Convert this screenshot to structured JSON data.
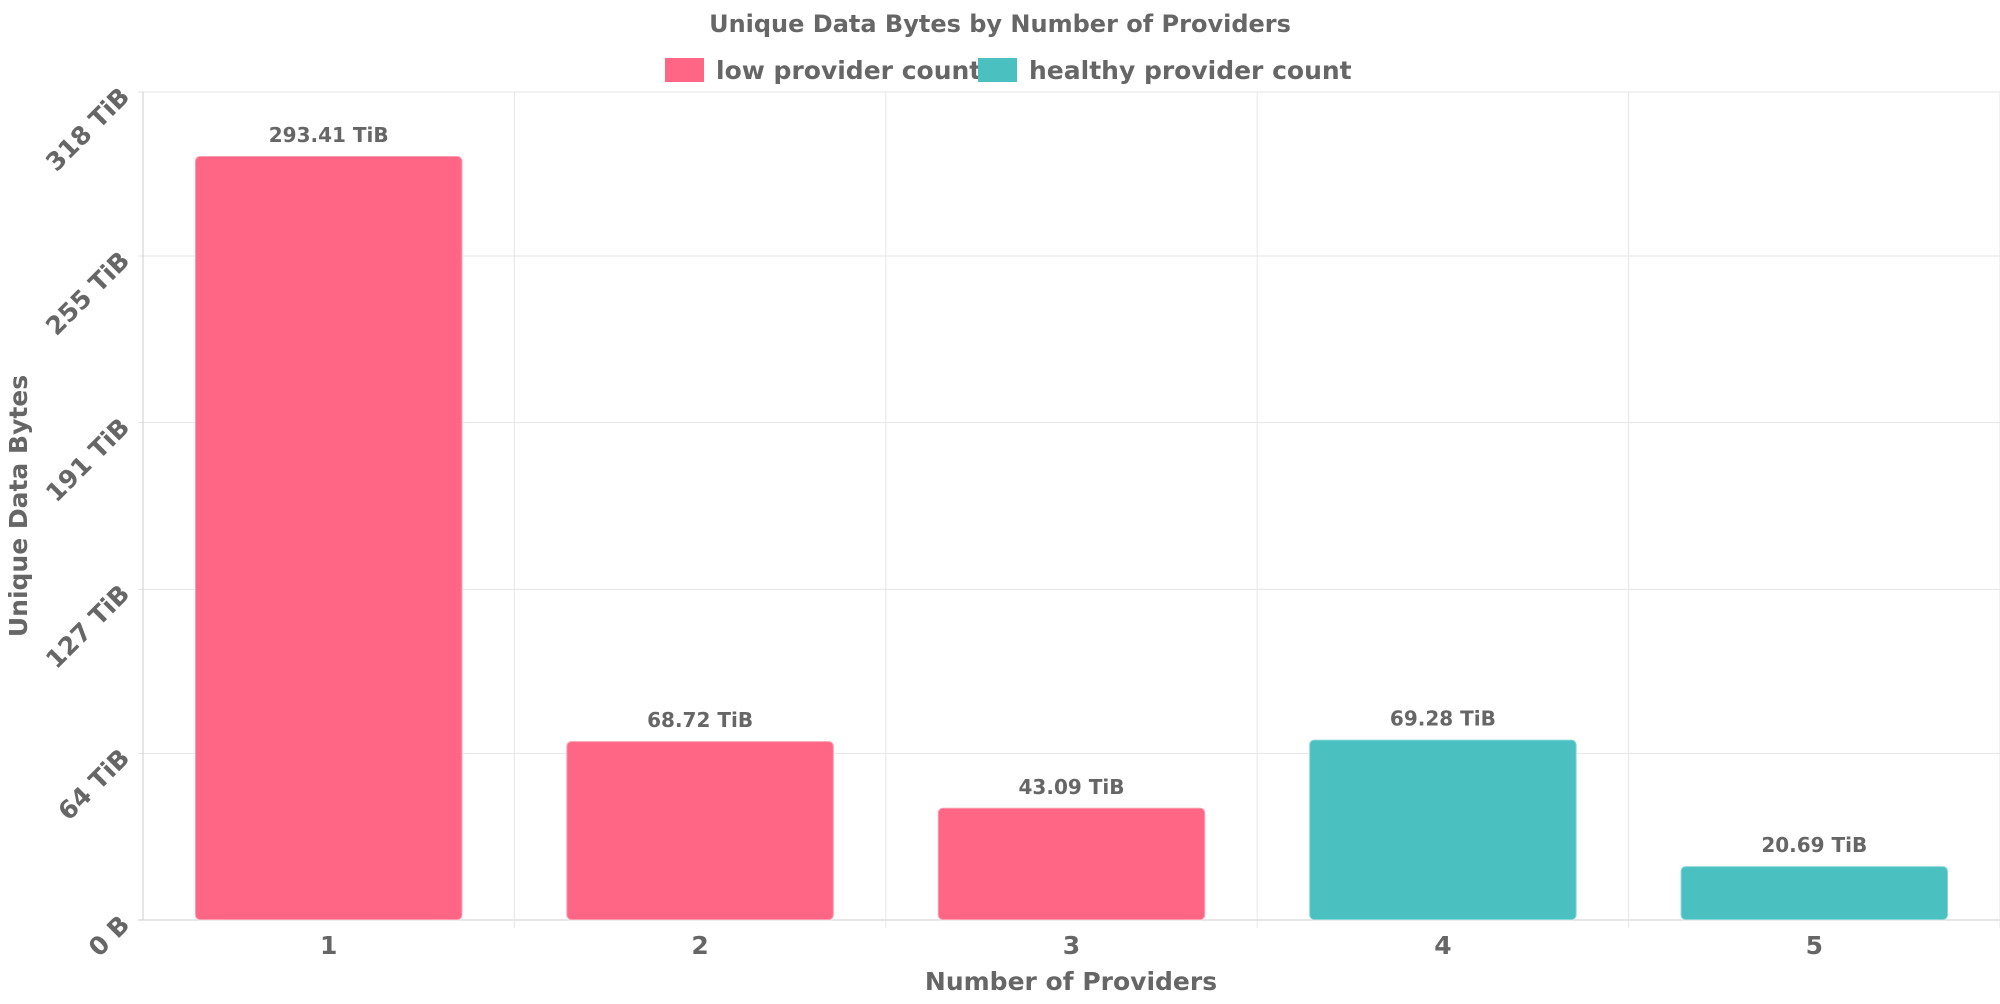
{
  "chart_data": {
    "type": "bar",
    "title": "Unique Data Bytes by Number of Providers",
    "xlabel": "Number of Providers",
    "ylabel": "Unique Data Bytes",
    "categories": [
      "1",
      "2",
      "3",
      "4",
      "5"
    ],
    "values": [
      293.41,
      68.72,
      43.09,
      69.28,
      20.69
    ],
    "value_unit": "TiB",
    "data_labels": [
      "293.41 TiB",
      "68.72 TiB",
      "43.09 TiB",
      "69.28 TiB",
      "20.69 TiB"
    ],
    "bar_groups": [
      "low",
      "low",
      "low",
      "healthy",
      "healthy"
    ],
    "ylim": [
      0,
      318
    ],
    "yticks": [
      0,
      64,
      127,
      191,
      255,
      318
    ],
    "ytick_labels": [
      "0 B",
      "64 TiB",
      "127 TiB",
      "191 TiB",
      "255 TiB",
      "318 TiB"
    ],
    "legend": {
      "position": "top",
      "items": [
        {
          "key": "low",
          "label": "low provider count",
          "color": "#ff6584"
        },
        {
          "key": "healthy",
          "label": "healthy provider count",
          "color": "#4bc0c0"
        }
      ]
    },
    "grid": true,
    "colors": {
      "low": "#ff6584",
      "healthy": "#4bc0c0",
      "grid": "#e6e6e6",
      "text": "#666666"
    }
  }
}
